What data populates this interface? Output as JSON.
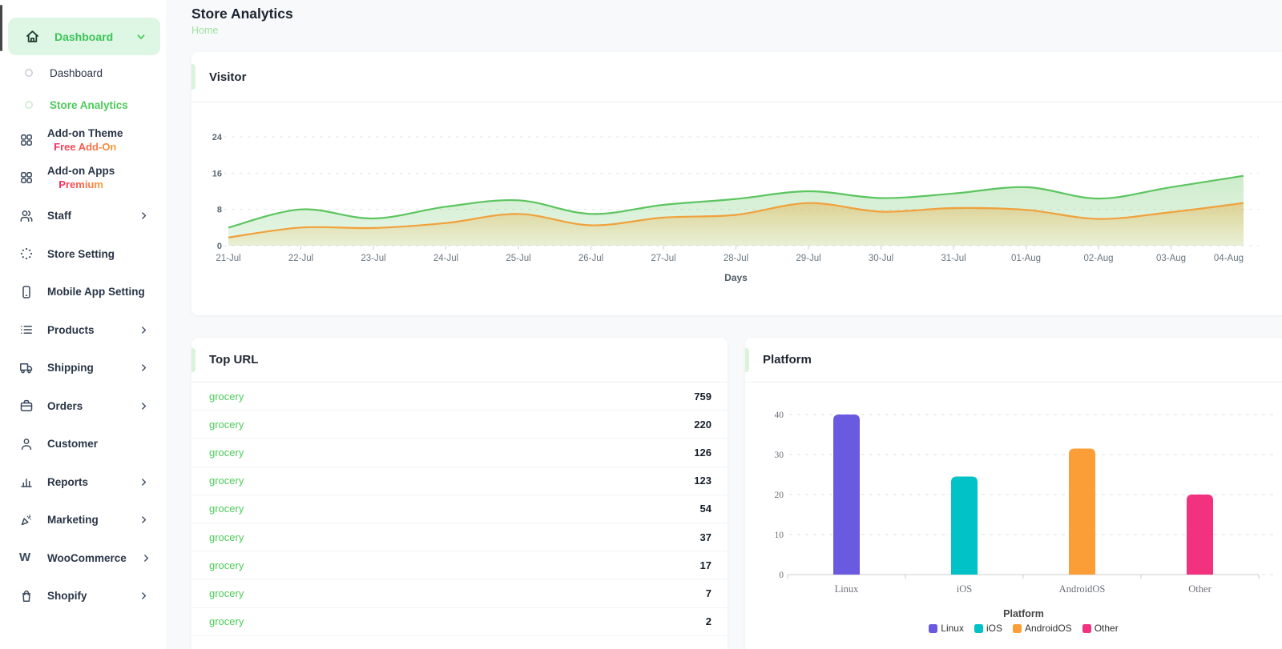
{
  "page": {
    "title": "Store Analytics",
    "breadcrumb": "Home"
  },
  "sidebar": {
    "parent": {
      "label": "Dashboard",
      "icon": "home"
    },
    "sub_items": [
      {
        "label": "Dashboard",
        "active": false
      },
      {
        "label": "Store Analytics",
        "active": true
      }
    ],
    "items": [
      {
        "icon": "grid",
        "label": "Add-on Theme",
        "badge": "Free Add-On",
        "chevron": false
      },
      {
        "icon": "grid",
        "label": "Add-on Apps",
        "badge": "Premium",
        "chevron": false
      },
      {
        "icon": "users",
        "label": "Staff",
        "chevron": true
      },
      {
        "icon": "loader",
        "label": "Store Setting",
        "chevron": false
      },
      {
        "icon": "smartphone",
        "label": "Mobile App Setting",
        "chevron": false
      },
      {
        "icon": "list",
        "label": "Products",
        "chevron": true
      },
      {
        "icon": "truck",
        "label": "Shipping",
        "chevron": true
      },
      {
        "icon": "briefcase",
        "label": "Orders",
        "chevron": true
      },
      {
        "icon": "user",
        "label": "Customer",
        "chevron": false
      },
      {
        "icon": "bar-chart",
        "label": "Reports",
        "chevron": true
      },
      {
        "icon": "megaphone",
        "label": "Marketing",
        "chevron": true
      },
      {
        "icon": "woocommerce",
        "label": "WooCommerce",
        "chevron": true
      },
      {
        "icon": "shopify",
        "label": "Shopify",
        "chevron": true
      }
    ]
  },
  "cards": {
    "visitor": {
      "title": "Visitor"
    },
    "top_url": {
      "title": "Top URL",
      "rows": [
        {
          "label": "grocery",
          "value": "759"
        },
        {
          "label": "grocery",
          "value": "220"
        },
        {
          "label": "grocery",
          "value": "126"
        },
        {
          "label": "grocery",
          "value": "123"
        },
        {
          "label": "grocery",
          "value": "54"
        },
        {
          "label": "grocery",
          "value": "37"
        },
        {
          "label": "grocery",
          "value": "17"
        },
        {
          "label": "grocery",
          "value": "7"
        },
        {
          "label": "grocery",
          "value": "2"
        }
      ]
    },
    "platform": {
      "title": "Platform"
    }
  },
  "chart_data": [
    {
      "name": "visitor-area-chart",
      "type": "area",
      "title": "Visitor",
      "x": [
        "21-Jul",
        "22-Jul",
        "23-Jul",
        "24-Jul",
        "25-Jul",
        "26-Jul",
        "27-Jul",
        "28-Jul",
        "29-Jul",
        "30-Jul",
        "31-Jul",
        "01-Aug",
        "02-Aug",
        "03-Aug",
        "04-Aug"
      ],
      "series": [
        {
          "name": "green",
          "color": "#5bc55f",
          "values": [
            4,
            8,
            6,
            8.6,
            10,
            7,
            9,
            10.3,
            12,
            10.5,
            11.5,
            12.9,
            10.4,
            12.9,
            15.4
          ]
        },
        {
          "name": "orange",
          "color": "#f0a13c",
          "values": [
            1.8,
            4,
            3.9,
            5,
            7,
            4.5,
            6.2,
            6.8,
            9.4,
            7.5,
            8.3,
            7.9,
            5.9,
            7.4,
            9.4
          ]
        }
      ],
      "xlabel": "Days",
      "ylim": [
        0,
        24
      ],
      "yticks": [
        0,
        8,
        16,
        24
      ],
      "grid": "dashed-horizontal"
    },
    {
      "name": "platform-bar-chart",
      "type": "bar",
      "title": "Platform",
      "categories": [
        "Linux",
        "iOS",
        "AndroidOS",
        "Other"
      ],
      "values": [
        40,
        24.5,
        31.5,
        20
      ],
      "colors": [
        "#6a5ae0",
        "#00c2c7",
        "#fc9e38",
        "#f2317f"
      ],
      "legend": {
        "title": "Platform",
        "items": [
          "Linux",
          "iOS",
          "AndroidOS",
          "Other"
        ],
        "position": "bottom-center"
      },
      "ylim": [
        0,
        40
      ],
      "yticks": [
        0,
        10,
        20,
        30,
        40
      ],
      "grid": "dashed-horizontal"
    }
  ],
  "colors": {
    "accent_green": "#4ccb58",
    "active_item_bg": "#ddf7e4",
    "badge_gradient_from": "#f8285f",
    "badge_gradient_to": "#fb9c35",
    "page_bg": "#f8f9fa"
  }
}
